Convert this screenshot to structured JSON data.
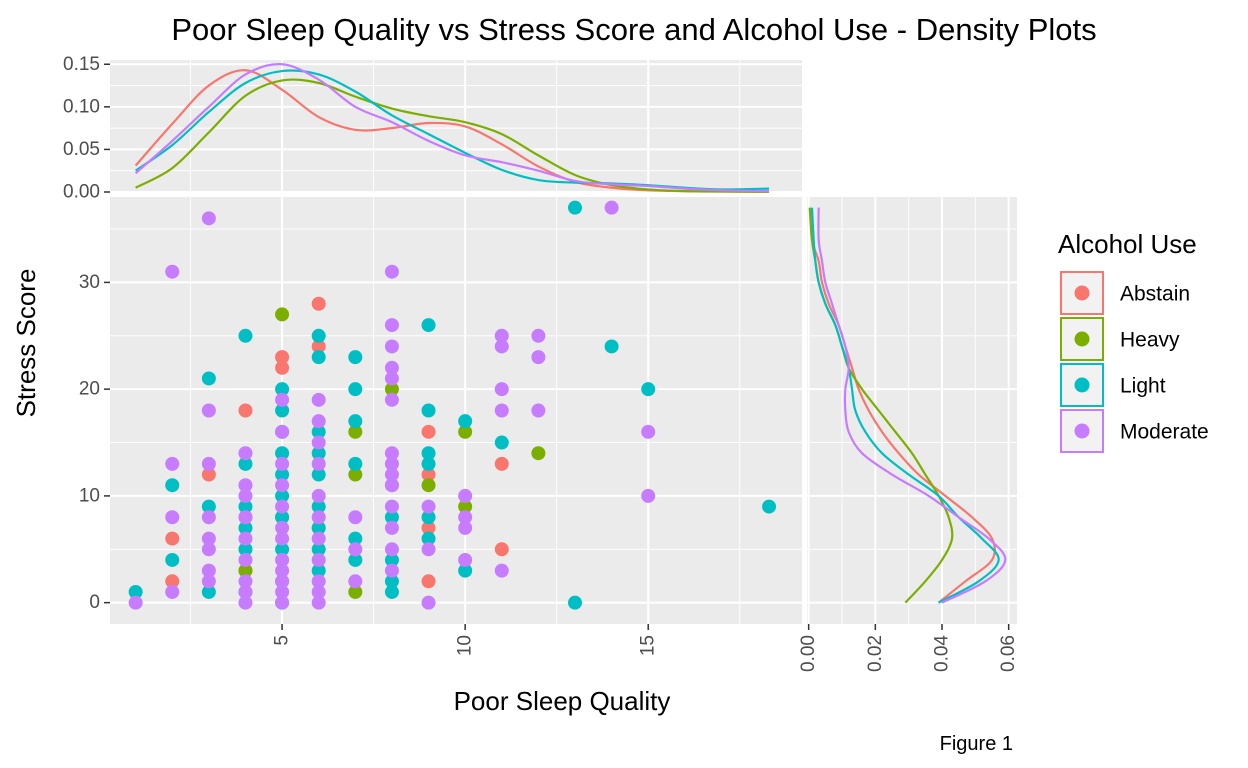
{
  "chart_data": {
    "type": "scatter",
    "title": "Poor Sleep Quality vs Stress Score and Alcohol Use - Density Plots",
    "xlabel": "Poor Sleep Quality",
    "ylabel": "Stress Score",
    "caption": "Figure 1",
    "xlim": [
      0.3,
      19.2
    ],
    "ylim": [
      -2,
      38
    ],
    "x_ticks": [
      5,
      10,
      15
    ],
    "y_ticks": [
      0,
      10,
      20,
      30
    ],
    "x_tick_labels": [
      "5",
      "10",
      "15"
    ],
    "y_tick_labels": [
      "0",
      "10",
      "20",
      "30"
    ],
    "grid": true,
    "legend": {
      "title": "Alcohol Use",
      "position": "right",
      "entries": [
        "Abstain",
        "Heavy",
        "Light",
        "Moderate"
      ]
    },
    "colors": {
      "Abstain": "#F8766D",
      "Heavy": "#7CAE00",
      "Light": "#00BFC4",
      "Moderate": "#C77CFF"
    },
    "series": [
      {
        "name": "Abstain",
        "points": [
          [
            2,
            2
          ],
          [
            2,
            6
          ],
          [
            3,
            12
          ],
          [
            4,
            3
          ],
          [
            4,
            8
          ],
          [
            4,
            18
          ],
          [
            5,
            22
          ],
          [
            5,
            23
          ],
          [
            6,
            7
          ],
          [
            6,
            24
          ],
          [
            6,
            28
          ],
          [
            8,
            11
          ],
          [
            9,
            2
          ],
          [
            9,
            7
          ],
          [
            9,
            12
          ],
          [
            9,
            16
          ],
          [
            11,
            5
          ],
          [
            11,
            13
          ]
        ]
      },
      {
        "name": "Heavy",
        "points": [
          [
            4,
            3
          ],
          [
            5,
            8
          ],
          [
            5,
            27
          ],
          [
            7,
            1
          ],
          [
            7,
            12
          ],
          [
            7,
            16
          ],
          [
            8,
            20
          ],
          [
            9,
            11
          ],
          [
            10,
            9
          ],
          [
            10,
            16
          ],
          [
            12,
            14
          ]
        ]
      },
      {
        "name": "Light",
        "points": [
          [
            1,
            1
          ],
          [
            2,
            4
          ],
          [
            2,
            11
          ],
          [
            3,
            1
          ],
          [
            3,
            9
          ],
          [
            3,
            21
          ],
          [
            4,
            1
          ],
          [
            4,
            5
          ],
          [
            4,
            7
          ],
          [
            4,
            9
          ],
          [
            4,
            13
          ],
          [
            4,
            25
          ],
          [
            5,
            0
          ],
          [
            5,
            2
          ],
          [
            5,
            5
          ],
          [
            5,
            8
          ],
          [
            5,
            10
          ],
          [
            5,
            12
          ],
          [
            5,
            14
          ],
          [
            5,
            16
          ],
          [
            5,
            18
          ],
          [
            5,
            20
          ],
          [
            6,
            3
          ],
          [
            6,
            5
          ],
          [
            6,
            7
          ],
          [
            6,
            9
          ],
          [
            6,
            12
          ],
          [
            6,
            14
          ],
          [
            6,
            16
          ],
          [
            6,
            23
          ],
          [
            6,
            25
          ],
          [
            7,
            4
          ],
          [
            7,
            6
          ],
          [
            7,
            13
          ],
          [
            7,
            17
          ],
          [
            7,
            20
          ],
          [
            7,
            23
          ],
          [
            8,
            1
          ],
          [
            8,
            2
          ],
          [
            8,
            4
          ],
          [
            8,
            8
          ],
          [
            9,
            6
          ],
          [
            9,
            8
          ],
          [
            9,
            13
          ],
          [
            9,
            14
          ],
          [
            9,
            18
          ],
          [
            9,
            26
          ],
          [
            10,
            3
          ],
          [
            10,
            17
          ],
          [
            11,
            15
          ],
          [
            13,
            0
          ],
          [
            13,
            37
          ],
          [
            14,
            24
          ],
          [
            15,
            20
          ],
          [
            18.3,
            9
          ]
        ]
      },
      {
        "name": "Moderate",
        "points": [
          [
            1,
            0
          ],
          [
            2,
            1
          ],
          [
            2,
            8
          ],
          [
            2,
            13
          ],
          [
            2,
            31
          ],
          [
            3,
            2
          ],
          [
            3,
            3
          ],
          [
            3,
            5
          ],
          [
            3,
            6
          ],
          [
            3,
            8
          ],
          [
            3,
            13
          ],
          [
            3,
            18
          ],
          [
            3,
            36
          ],
          [
            4,
            0
          ],
          [
            4,
            1
          ],
          [
            4,
            2
          ],
          [
            4,
            4
          ],
          [
            4,
            6
          ],
          [
            4,
            8
          ],
          [
            4,
            10
          ],
          [
            4,
            11
          ],
          [
            4,
            14
          ],
          [
            5,
            0
          ],
          [
            5,
            1
          ],
          [
            5,
            2
          ],
          [
            5,
            3
          ],
          [
            5,
            4
          ],
          [
            5,
            6
          ],
          [
            5,
            7
          ],
          [
            5,
            9
          ],
          [
            5,
            11
          ],
          [
            5,
            13
          ],
          [
            5,
            16
          ],
          [
            5,
            19
          ],
          [
            6,
            0
          ],
          [
            6,
            1
          ],
          [
            6,
            2
          ],
          [
            6,
            4
          ],
          [
            6,
            6
          ],
          [
            6,
            8
          ],
          [
            6,
            10
          ],
          [
            6,
            13
          ],
          [
            6,
            15
          ],
          [
            6,
            17
          ],
          [
            6,
            19
          ],
          [
            7,
            2
          ],
          [
            7,
            5
          ],
          [
            7,
            8
          ],
          [
            8,
            3
          ],
          [
            8,
            5
          ],
          [
            8,
            7
          ],
          [
            8,
            9
          ],
          [
            8,
            11
          ],
          [
            8,
            12
          ],
          [
            8,
            13
          ],
          [
            8,
            14
          ],
          [
            8,
            19
          ],
          [
            8,
            21
          ],
          [
            8,
            22
          ],
          [
            8,
            24
          ],
          [
            8,
            26
          ],
          [
            8,
            31
          ],
          [
            9,
            0
          ],
          [
            9,
            5
          ],
          [
            9,
            9
          ],
          [
            10,
            4
          ],
          [
            10,
            7
          ],
          [
            10,
            8
          ],
          [
            10,
            10
          ],
          [
            11,
            3
          ],
          [
            11,
            18
          ],
          [
            11,
            20
          ],
          [
            11,
            24
          ],
          [
            11,
            25
          ],
          [
            12,
            18
          ],
          [
            12,
            23
          ],
          [
            12,
            25
          ],
          [
            14,
            37
          ],
          [
            15,
            10
          ],
          [
            15,
            16
          ]
        ]
      }
    ],
    "marginal_x_density": {
      "ylim": [
        0,
        0.155
      ],
      "y_ticks": [
        0,
        0.05,
        0.1,
        0.15
      ],
      "y_tick_labels": [
        "0.00",
        "0.05",
        "0.10",
        "0.15"
      ],
      "x_range": [
        1,
        18.3
      ],
      "curves": [
        {
          "name": "Abstain",
          "x": [
            1,
            2,
            3,
            4,
            5,
            6,
            7,
            8,
            9,
            10,
            11,
            12,
            13,
            14,
            15,
            16,
            17,
            18.3
          ],
          "y": [
            0.031,
            0.08,
            0.125,
            0.143,
            0.12,
            0.088,
            0.073,
            0.075,
            0.081,
            0.077,
            0.056,
            0.03,
            0.012,
            0.005,
            0.002,
            0.001,
            0.0005,
            0.0002
          ]
        },
        {
          "name": "Heavy",
          "x": [
            1,
            2,
            3,
            4,
            5,
            6,
            7,
            8,
            9,
            10,
            11,
            12,
            13,
            14,
            15,
            16,
            17,
            18.3
          ],
          "y": [
            0.005,
            0.028,
            0.07,
            0.113,
            0.131,
            0.128,
            0.112,
            0.098,
            0.089,
            0.082,
            0.068,
            0.043,
            0.02,
            0.008,
            0.003,
            0.001,
            0.0005,
            0.0002
          ]
        },
        {
          "name": "Light",
          "x": [
            1,
            2,
            3,
            4,
            5,
            6,
            7,
            8,
            9,
            10,
            11,
            12,
            13,
            14,
            15,
            16,
            17,
            18.3
          ],
          "y": [
            0.025,
            0.055,
            0.094,
            0.128,
            0.142,
            0.138,
            0.118,
            0.09,
            0.068,
            0.046,
            0.026,
            0.014,
            0.011,
            0.01,
            0.008,
            0.005,
            0.003,
            0.004
          ]
        },
        {
          "name": "Moderate",
          "x": [
            1,
            2,
            3,
            4,
            5,
            6,
            7,
            8,
            9,
            10,
            11,
            12,
            13,
            14,
            15,
            16,
            17,
            18.3
          ],
          "y": [
            0.022,
            0.06,
            0.1,
            0.138,
            0.15,
            0.132,
            0.1,
            0.082,
            0.06,
            0.043,
            0.035,
            0.025,
            0.013,
            0.009,
            0.007,
            0.004,
            0.002,
            0.001
          ]
        }
      ]
    },
    "marginal_y_density": {
      "xlim": [
        -0.0005,
        0.0625
      ],
      "x_ticks": [
        0,
        0.02,
        0.04,
        0.06
      ],
      "x_tick_labels": [
        "0.00",
        "0.02",
        "0.04",
        "0.06"
      ],
      "curves": [
        {
          "name": "Abstain",
          "y": [
            0,
            2,
            4,
            6,
            8,
            10,
            12,
            14,
            16,
            18,
            20,
            22,
            24,
            26,
            28,
            30,
            32,
            34,
            37
          ],
          "d": [
            0.039,
            0.047,
            0.055,
            0.055,
            0.049,
            0.041,
            0.033,
            0.027,
            0.022,
            0.018,
            0.015,
            0.013,
            0.011,
            0.009,
            0.006,
            0.004,
            0.003,
            0.001,
            0.0005
          ]
        },
        {
          "name": "Heavy",
          "y": [
            0,
            2,
            4,
            6,
            8,
            10,
            12,
            14,
            16,
            18,
            20,
            22,
            24,
            26,
            28,
            30,
            32,
            34,
            37
          ],
          "d": [
            0.029,
            0.035,
            0.04,
            0.043,
            0.042,
            0.039,
            0.035,
            0.031,
            0.026,
            0.021,
            0.016,
            0.012,
            0.01,
            0.008,
            0.005,
            0.003,
            0.002,
            0.001,
            0.0003
          ]
        },
        {
          "name": "Light",
          "y": [
            0,
            2,
            4,
            6,
            8,
            10,
            12,
            14,
            16,
            18,
            20,
            22,
            24,
            26,
            28,
            30,
            32,
            34,
            37
          ],
          "d": [
            0.039,
            0.051,
            0.057,
            0.052,
            0.045,
            0.039,
            0.03,
            0.022,
            0.017,
            0.014,
            0.013,
            0.012,
            0.01,
            0.008,
            0.005,
            0.003,
            0.002,
            0.0015,
            0.001
          ]
        },
        {
          "name": "Moderate",
          "y": [
            0,
            2,
            4,
            6,
            8,
            10,
            12,
            14,
            16,
            18,
            20,
            22,
            24,
            26,
            28,
            30,
            32,
            34,
            37
          ],
          "d": [
            0.04,
            0.053,
            0.059,
            0.054,
            0.045,
            0.036,
            0.025,
            0.016,
            0.012,
            0.011,
            0.011,
            0.012,
            0.011,
            0.009,
            0.007,
            0.005,
            0.004,
            0.003,
            0.003
          ]
        }
      ]
    }
  }
}
